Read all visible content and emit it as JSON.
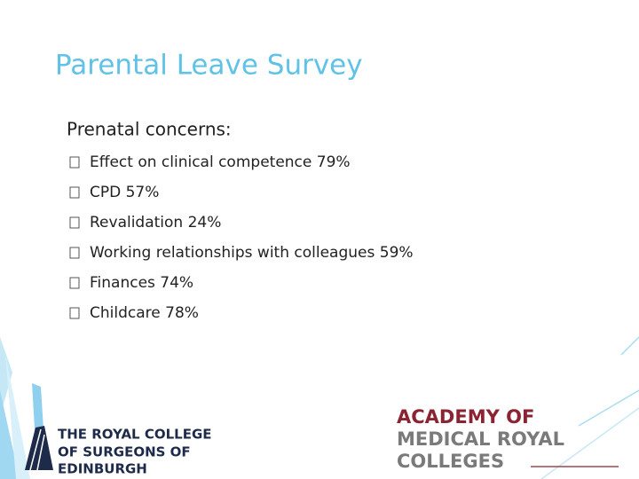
{
  "title": "Parental Leave Survey",
  "heading": "Prenatal concerns:",
  "items": [
    "Effect on clinical competence 79%",
    "CPD 57%",
    "Revalidation 24%",
    "Working relationships with colleagues 59%",
    "Finances 74%",
    "Childcare 78%"
  ],
  "logos": {
    "rcsed": [
      "THE ROYAL COLLEGE",
      "OF SURGEONS OF",
      "EDINBURGH"
    ],
    "academy": [
      "ACADEMY OF",
      "MEDICAL ROYAL",
      "COLLEGES"
    ]
  }
}
